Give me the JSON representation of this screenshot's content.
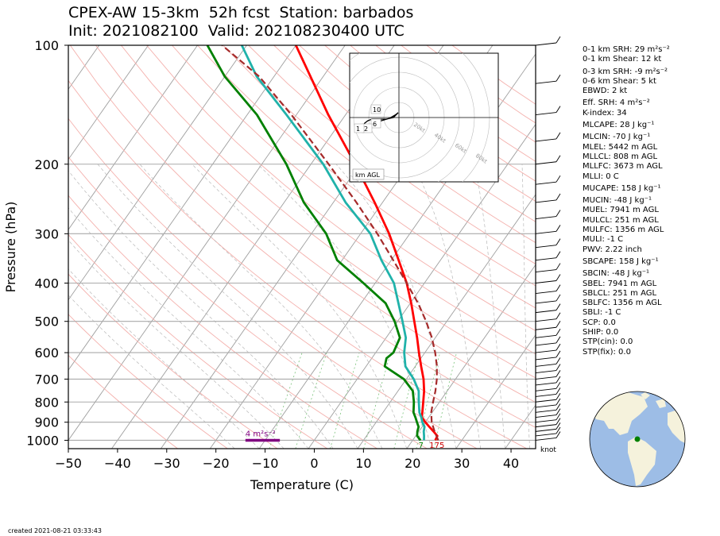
{
  "title_line1": "CPEX-AW 15-3km  52h fcst  Station: barbados",
  "title_line2": "Init: 2021082100  Valid: 202108230400 UTC",
  "created": "created 2021-08-21 03:33:43",
  "chart_data": {
    "type": "skew-t log-p sounding",
    "xlabel": "Temperature (C)",
    "ylabel": "Pressure (hPa)",
    "xlim": [
      -50,
      45
    ],
    "ylim": [
      1050,
      100
    ],
    "y_scale": "log",
    "x_ticks": [
      -50,
      -40,
      -30,
      -20,
      -10,
      0,
      10,
      20,
      30,
      40
    ],
    "y_ticks": [
      100,
      200,
      300,
      400,
      500,
      600,
      700,
      800,
      900,
      1000
    ],
    "grid": true,
    "series": [
      {
        "name": "",
        "color": "#ff0000",
        "points": [
          [
            1000,
            24.6
          ],
          [
            975,
            24.4
          ],
          [
            950,
            23.0
          ],
          [
            925,
            21.5
          ],
          [
            900,
            20.0
          ],
          [
            875,
            18.6
          ],
          [
            850,
            18.0
          ],
          [
            800,
            16.7
          ],
          [
            750,
            15.3
          ],
          [
            700,
            13.5
          ],
          [
            650,
            11.2
          ],
          [
            600,
            8.8
          ],
          [
            550,
            6.3
          ],
          [
            500,
            3.4
          ],
          [
            450,
            0.2
          ],
          [
            400,
            -3.6
          ],
          [
            350,
            -8.5
          ],
          [
            300,
            -14.2
          ],
          [
            250,
            -21.6
          ],
          [
            200,
            -31.0
          ],
          [
            150,
            -43.5
          ],
          [
            100,
            -60.0
          ]
        ]
      },
      {
        "name": "",
        "color": "#008000",
        "points": [
          [
            1000,
            21.6
          ],
          [
            975,
            20.3
          ],
          [
            950,
            19.7
          ],
          [
            925,
            19.3
          ],
          [
            900,
            18.3
          ],
          [
            875,
            17.3
          ],
          [
            850,
            16.2
          ],
          [
            800,
            14.8
          ],
          [
            750,
            13.0
          ],
          [
            700,
            9.5
          ],
          [
            650,
            3.8
          ],
          [
            620,
            3.0
          ],
          [
            600,
            3.6
          ],
          [
            550,
            2.8
          ],
          [
            500,
            -0.6
          ],
          [
            450,
            -5.0
          ],
          [
            400,
            -12.4
          ],
          [
            350,
            -21.0
          ],
          [
            300,
            -27.0
          ],
          [
            250,
            -36.0
          ],
          [
            200,
            -45.0
          ],
          [
            150,
            -58.0
          ],
          [
            120,
            -70.0
          ],
          [
            100,
            -78.0
          ]
        ]
      },
      {
        "name": "",
        "color": "#20b2aa",
        "points": [
          [
            1000,
            22.3
          ],
          [
            975,
            21.7
          ],
          [
            950,
            21.0
          ],
          [
            925,
            20.5
          ],
          [
            900,
            19.4
          ],
          [
            875,
            18.5
          ],
          [
            850,
            17.4
          ],
          [
            800,
            15.8
          ],
          [
            750,
            14.2
          ],
          [
            700,
            11.5
          ],
          [
            650,
            8.0
          ],
          [
            600,
            5.8
          ],
          [
            550,
            4.0
          ],
          [
            500,
            1.0
          ],
          [
            450,
            -2.4
          ],
          [
            400,
            -6.2
          ],
          [
            350,
            -12.0
          ],
          [
            300,
            -18.0
          ],
          [
            250,
            -27.5
          ],
          [
            200,
            -37.5
          ],
          [
            150,
            -52.0
          ],
          [
            120,
            -63.5
          ],
          [
            100,
            -71.0
          ]
        ]
      },
      {
        "name": "",
        "color": "#a52a2a",
        "style": "dashed",
        "points": [
          [
            1000,
            25.2
          ],
          [
            950,
            23.2
          ],
          [
            900,
            21.3
          ],
          [
            850,
            19.8
          ],
          [
            800,
            18.7
          ],
          [
            750,
            17.6
          ],
          [
            700,
            16.2
          ],
          [
            650,
            14.4
          ],
          [
            600,
            12.1
          ],
          [
            550,
            9.3
          ],
          [
            500,
            5.8
          ],
          [
            450,
            1.6
          ],
          [
            400,
            -3.6
          ],
          [
            350,
            -9.6
          ],
          [
            300,
            -16.6
          ],
          [
            250,
            -25.3
          ],
          [
            200,
            -36.4
          ],
          [
            150,
            -51.0
          ],
          [
            120,
            -63.0
          ],
          [
            100,
            -75.0
          ]
        ]
      }
    ],
    "surface_labels": [
      {
        "text": "7",
        "color": "#008000",
        "p": 1025,
        "t": 21.8
      },
      {
        "text": "175",
        "color": "#cc0000",
        "p": 1025,
        "t": 24.0
      }
    ],
    "srh_marker": {
      "text": "4 m²s⁻²",
      "color": "#800080",
      "p": 1000,
      "t1": -14,
      "t2": -7
    },
    "wind_unit_label": "knot",
    "hodograph": {
      "corner_label": "km AGL",
      "ring_labels": [
        "20kt",
        "40kt",
        "60kt",
        "80kt"
      ],
      "height_labels": [
        "10",
        "6",
        "2",
        "1"
      ]
    },
    "indices": [
      "0-1 km SRH: 29 m²s⁻²",
      "0-1 km Shear: 12 kt",
      "0-3 km SRH: -9 m²s⁻²",
      "0-6 km Shear: 5 kt",
      "EBWD: 2 kt",
      "Eff. SRH: 4 m²s⁻²",
      "K-index: 34",
      "MLCAPE: 28 J kg⁻¹",
      "MLCIN: -70 J kg⁻¹",
      "MLEL: 5442 m AGL",
      "MLLCL: 808 m AGL",
      "MLLFC: 3673 m AGL",
      "MLLI: 0 C",
      "MUCAPE: 158 J kg⁻¹",
      "MUCIN: -48 J kg⁻¹",
      "MUEL: 7941 m AGL",
      "MULCL: 251 m AGL",
      "MULFC: 1356 m AGL",
      "MULI: -1 C",
      "PWV: 2.22 inch",
      "SBCAPE: 158 J kg⁻¹",
      "SBCIN: -48 J kg⁻¹",
      "SBEL: 7941 m AGL",
      "SBLCL: 251 m AGL",
      "SBLFC: 1356 m AGL",
      "SBLI: -1 C",
      "SCP: 0.0",
      "SHIP: 0.0",
      "STP(cin): 0.0",
      "STP(fix): 0.0"
    ]
  }
}
